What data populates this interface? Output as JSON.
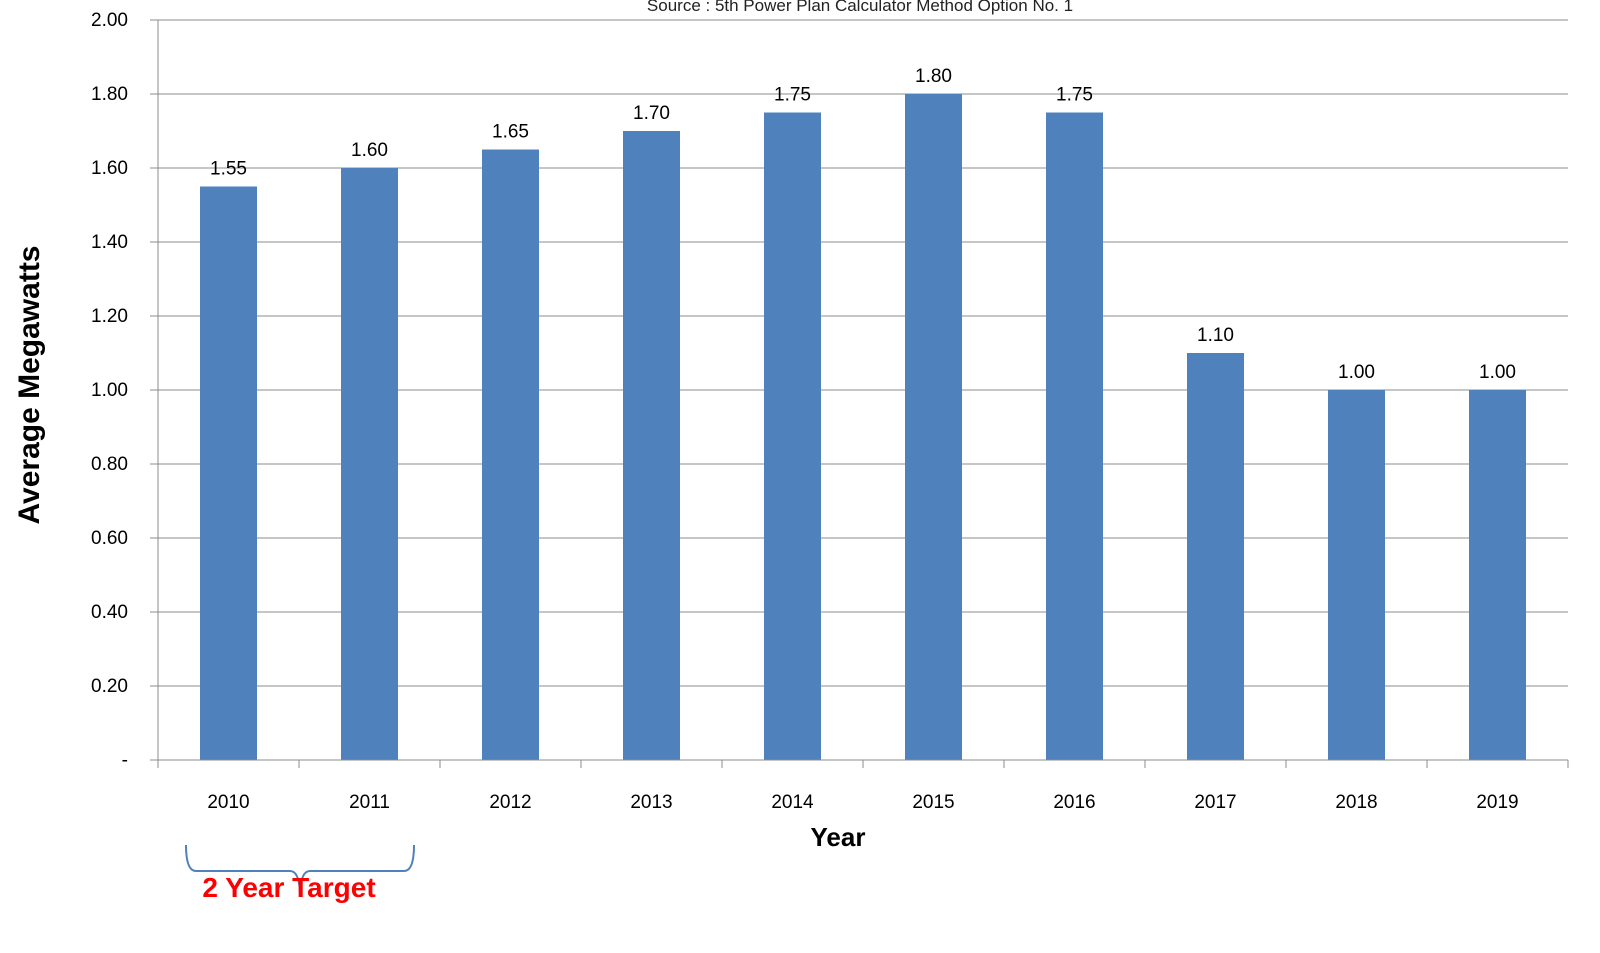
{
  "chart_data": {
    "type": "bar",
    "title": "",
    "subtitle": "Source : 5th Power Plan Calculator Method Option No. 1",
    "xlabel": "Year",
    "ylabel": "Average Megawatts",
    "categories": [
      "2010",
      "2011",
      "2012",
      "2013",
      "2014",
      "2015",
      "2016",
      "2017",
      "2018",
      "2019"
    ],
    "values": [
      1.55,
      1.6,
      1.65,
      1.7,
      1.75,
      1.8,
      1.75,
      1.1,
      1.0,
      1.0
    ],
    "data_labels": [
      "1.55",
      "1.60",
      "1.65",
      "1.70",
      "1.75",
      "1.80",
      "1.75",
      "1.10",
      "1.00",
      "1.00"
    ],
    "ylim": [
      0,
      2.0
    ],
    "yticks": [
      "-",
      "0.20",
      "0.40",
      "0.60",
      "0.80",
      "1.00",
      "1.20",
      "1.40",
      "1.60",
      "1.80",
      "2.00"
    ],
    "grid": true,
    "bar_color": "#4F81BD",
    "annotation": {
      "text": "2 Year Target",
      "spans": [
        "2010",
        "2011"
      ],
      "color": "#ff0000",
      "bracket_color": "#4F81BD"
    }
  }
}
